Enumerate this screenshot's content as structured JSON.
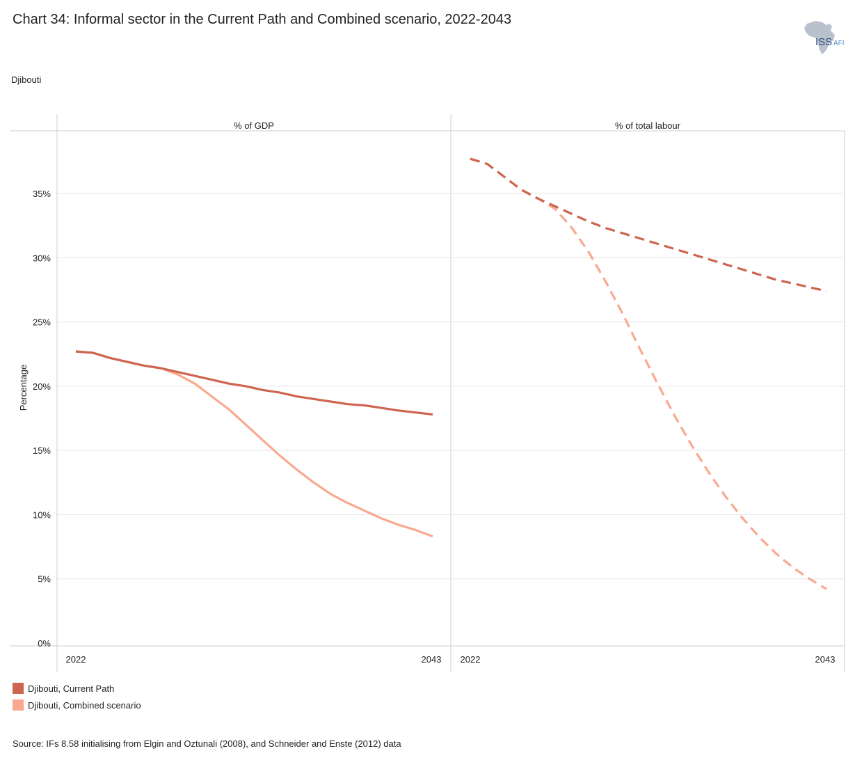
{
  "title": "Chart 34: Informal sector in the Current Path and Combined scenario, 2022-2043",
  "subtitle": "Djibouti",
  "source": "Source: IFs 8.58 initialising from Elgin and Oztunali (2008), and Schneider and Enste (2012) data",
  "logo": {
    "text_main": "ISS",
    "text_sub": "AFI"
  },
  "legend": [
    {
      "label": "Djibouti, Current Path",
      "color": "#cd6550"
    },
    {
      "label": "Djibouti, Combined scenario",
      "color": "#f9a98f"
    }
  ],
  "chart_data": {
    "type": "line",
    "ylabel": "Percentage",
    "ylim": [
      0,
      40
    ],
    "yticks": [
      0,
      5,
      10,
      15,
      20,
      25,
      30,
      35
    ],
    "ytick_labels": [
      "0%",
      "5%",
      "10%",
      "15%",
      "20%",
      "25%",
      "30%",
      "35%"
    ],
    "grid": true,
    "legend_position": "bottom-left",
    "panels": [
      {
        "title": "% of GDP",
        "xtick_labels": [
          "2022",
          "2043"
        ],
        "line_style": "solid",
        "x": [
          2022,
          2023,
          2024,
          2025,
          2026,
          2027,
          2028,
          2029,
          2030,
          2031,
          2032,
          2033,
          2034,
          2035,
          2036,
          2037,
          2038,
          2039,
          2040,
          2041,
          2042,
          2043
        ],
        "series": [
          {
            "name": "Djibouti, Current Path",
            "values": [
              22.7,
              22.6,
              22.2,
              21.9,
              21.6,
              21.4,
              21.1,
              20.8,
              20.5,
              20.2,
              20.0,
              19.7,
              19.5,
              19.2,
              19.0,
              18.8,
              18.6,
              18.5,
              18.3,
              18.1,
              17.95,
              17.8
            ]
          },
          {
            "name": "Djibouti, Combined scenario",
            "values": [
              22.7,
              22.6,
              22.2,
              21.9,
              21.6,
              21.4,
              20.9,
              20.2,
              19.2,
              18.2,
              17.0,
              15.8,
              14.6,
              13.5,
              12.5,
              11.6,
              10.9,
              10.3,
              9.7,
              9.2,
              8.8,
              8.3
            ]
          }
        ]
      },
      {
        "title": "% of total labour",
        "xtick_labels": [
          "2022",
          "2043"
        ],
        "line_style": "dashed",
        "x": [
          2022,
          2023,
          2024,
          2025,
          2026,
          2027,
          2028,
          2029,
          2030,
          2031,
          2032,
          2033,
          2034,
          2035,
          2036,
          2037,
          2038,
          2039,
          2040,
          2041,
          2042,
          2043
        ],
        "series": [
          {
            "name": "Djibouti, Current Path",
            "values": [
              37.7,
              37.3,
              36.3,
              35.3,
              34.6,
              34.0,
              33.4,
              32.8,
              32.3,
              31.9,
              31.5,
              31.1,
              30.7,
              30.3,
              29.9,
              29.5,
              29.1,
              28.7,
              28.3,
              28.0,
              27.7,
              27.4
            ]
          },
          {
            "name": "Djibouti, Combined scenario",
            "values": [
              37.7,
              37.3,
              36.3,
              35.3,
              34.6,
              33.8,
              32.3,
              30.4,
              28.1,
              25.6,
              22.9,
              20.3,
              17.8,
              15.5,
              13.4,
              11.5,
              9.8,
              8.3,
              7.0,
              5.9,
              5.0,
              4.2
            ]
          }
        ]
      }
    ]
  }
}
